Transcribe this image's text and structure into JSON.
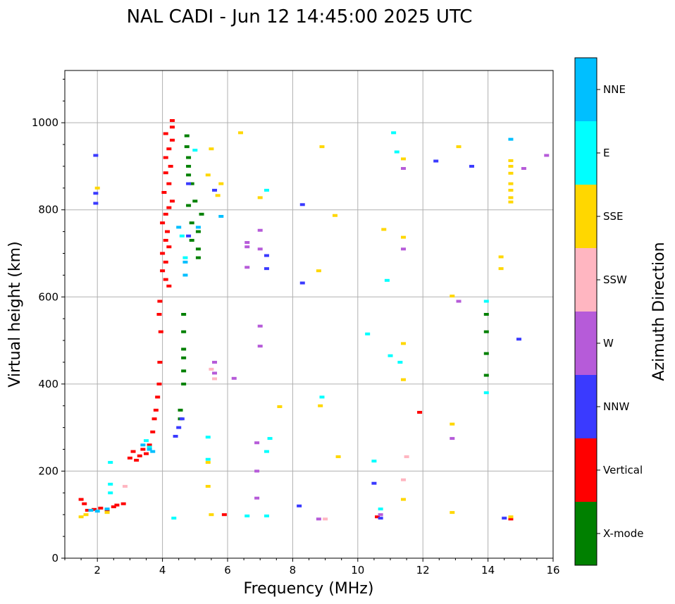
{
  "chart_data": {
    "type": "scatter",
    "title": "NAL CADI - Jun 12 14:45:00 2025 UTC",
    "xlabel": "Frequency (MHz)",
    "ylabel": "Virtual height (km)",
    "xlim": [
      1,
      16
    ],
    "ylim": [
      0,
      1120
    ],
    "xticks": [
      2,
      4,
      6,
      8,
      10,
      12,
      14,
      16
    ],
    "yticks": [
      0,
      200,
      400,
      600,
      800,
      1000
    ],
    "grid": true,
    "colorbar": {
      "label": "Azimuth Direction",
      "categories": [
        "X-mode",
        "Vertical",
        "NNW",
        "W",
        "SSW",
        "SSE",
        "E",
        "NNE"
      ],
      "colors": {
        "X-mode": "#008000",
        "Vertical": "#ff0000",
        "NNW": "#3a3aff",
        "W": "#b65bd9",
        "SSW": "#ffb6c1",
        "SSE": "#ffd700",
        "E": "#00ffff",
        "NNE": "#00bfff"
      }
    },
    "series": [
      {
        "name": "Vertical",
        "points": [
          [
            1.5,
            135
          ],
          [
            1.6,
            125
          ],
          [
            1.7,
            110
          ],
          [
            1.9,
            112
          ],
          [
            2.1,
            115
          ],
          [
            2.3,
            110
          ],
          [
            2.5,
            118
          ],
          [
            2.6,
            122
          ],
          [
            2.8,
            125
          ],
          [
            3.0,
            230
          ],
          [
            3.1,
            245
          ],
          [
            3.2,
            225
          ],
          [
            3.3,
            235
          ],
          [
            3.4,
            250
          ],
          [
            3.5,
            240
          ],
          [
            3.6,
            260
          ],
          [
            3.7,
            290
          ],
          [
            3.75,
            320
          ],
          [
            3.8,
            340
          ],
          [
            3.85,
            370
          ],
          [
            3.9,
            400
          ],
          [
            3.92,
            450
          ],
          [
            3.95,
            520
          ],
          [
            3.9,
            560
          ],
          [
            3.92,
            590
          ],
          [
            4.2,
            625
          ],
          [
            4.1,
            640
          ],
          [
            4.0,
            660
          ],
          [
            4.1,
            680
          ],
          [
            4.0,
            700
          ],
          [
            4.2,
            715
          ],
          [
            4.1,
            730
          ],
          [
            4.15,
            750
          ],
          [
            4.0,
            770
          ],
          [
            4.1,
            790
          ],
          [
            4.2,
            805
          ],
          [
            4.3,
            820
          ],
          [
            4.05,
            840
          ],
          [
            4.2,
            860
          ],
          [
            4.1,
            885
          ],
          [
            4.25,
            900
          ],
          [
            4.1,
            920
          ],
          [
            4.2,
            940
          ],
          [
            4.3,
            960
          ],
          [
            4.1,
            975
          ],
          [
            4.3,
            990
          ],
          [
            4.3,
            1005
          ],
          [
            5.9,
            100
          ],
          [
            10.6,
            95
          ],
          [
            11.9,
            335
          ],
          [
            14.7,
            90
          ]
        ]
      },
      {
        "name": "X-mode",
        "points": [
          [
            4.55,
            320
          ],
          [
            4.55,
            340
          ],
          [
            4.65,
            400
          ],
          [
            4.65,
            430
          ],
          [
            4.65,
            460
          ],
          [
            4.65,
            480
          ],
          [
            4.65,
            520
          ],
          [
            4.65,
            560
          ],
          [
            5.1,
            690
          ],
          [
            5.1,
            710
          ],
          [
            4.9,
            730
          ],
          [
            5.1,
            750
          ],
          [
            4.9,
            770
          ],
          [
            5.2,
            790
          ],
          [
            4.8,
            810
          ],
          [
            5.0,
            820
          ],
          [
            4.9,
            860
          ],
          [
            4.8,
            880
          ],
          [
            4.8,
            900
          ],
          [
            4.8,
            920
          ],
          [
            4.75,
            945
          ],
          [
            4.75,
            970
          ],
          [
            13.95,
            420
          ],
          [
            13.95,
            470
          ],
          [
            13.95,
            520
          ],
          [
            13.95,
            560
          ]
        ]
      },
      {
        "name": "NNW",
        "points": [
          [
            4.4,
            280
          ],
          [
            4.5,
            300
          ],
          [
            4.6,
            320
          ],
          [
            4.8,
            740
          ],
          [
            4.8,
            860
          ],
          [
            5.6,
            845
          ],
          [
            7.2,
            665
          ],
          [
            7.2,
            695
          ],
          [
            8.2,
            120
          ],
          [
            8.3,
            812
          ],
          [
            8.3,
            632
          ],
          [
            10.5,
            172
          ],
          [
            10.7,
            92
          ],
          [
            12.4,
            912
          ],
          [
            13.5,
            900
          ],
          [
            14.5,
            92
          ],
          [
            14.95,
            503
          ],
          [
            1.95,
            925
          ],
          [
            1.95,
            815
          ],
          [
            1.95,
            838
          ]
        ]
      },
      {
        "name": "W",
        "points": [
          [
            5.6,
            425
          ],
          [
            5.6,
            450
          ],
          [
            6.6,
            725
          ],
          [
            6.6,
            715
          ],
          [
            6.6,
            668
          ],
          [
            7.0,
            753
          ],
          [
            7.0,
            710
          ],
          [
            7.0,
            533
          ],
          [
            7.0,
            487
          ],
          [
            6.9,
            265
          ],
          [
            6.9,
            200
          ],
          [
            6.9,
            138
          ],
          [
            8.8,
            90
          ],
          [
            11.4,
            710
          ],
          [
            11.4,
            895
          ],
          [
            13.1,
            590
          ],
          [
            12.9,
            275
          ],
          [
            15.1,
            895
          ],
          [
            15.8,
            925
          ],
          [
            6.2,
            413
          ],
          [
            10.7,
            100
          ]
        ]
      },
      {
        "name": "SSW",
        "points": [
          [
            2.85,
            165
          ],
          [
            5.5,
            434
          ],
          [
            11.5,
            233
          ],
          [
            11.4,
            180
          ],
          [
            9.0,
            90
          ],
          [
            5.6,
            412
          ]
        ]
      },
      {
        "name": "SSE",
        "points": [
          [
            1.5,
            95
          ],
          [
            1.65,
            100
          ],
          [
            2.3,
            105
          ],
          [
            2.0,
            850
          ],
          [
            5.4,
            880
          ],
          [
            5.5,
            940
          ],
          [
            5.8,
            860
          ],
          [
            5.7,
            833
          ],
          [
            6.4,
            977
          ],
          [
            7.0,
            828
          ],
          [
            8.9,
            945
          ],
          [
            9.3,
            787
          ],
          [
            8.8,
            660
          ],
          [
            8.85,
            350
          ],
          [
            7.6,
            348
          ],
          [
            9.4,
            233
          ],
          [
            10.8,
            755
          ],
          [
            11.4,
            737
          ],
          [
            11.4,
            917
          ],
          [
            11.4,
            493
          ],
          [
            11.4,
            410
          ],
          [
            11.4,
            135
          ],
          [
            12.9,
            602
          ],
          [
            12.9,
            308
          ],
          [
            12.9,
            105
          ],
          [
            13.1,
            945
          ],
          [
            14.4,
            692
          ],
          [
            14.4,
            665
          ],
          [
            14.7,
            913
          ],
          [
            14.7,
            900
          ],
          [
            14.7,
            884
          ],
          [
            14.7,
            860
          ],
          [
            14.7,
            845
          ],
          [
            14.7,
            828
          ],
          [
            14.7,
            818
          ],
          [
            14.7,
            95
          ],
          [
            5.4,
            220
          ],
          [
            5.4,
            165
          ],
          [
            5.5,
            100
          ]
        ]
      },
      {
        "name": "E",
        "points": [
          [
            2.4,
            220
          ],
          [
            2.4,
            170
          ],
          [
            2.4,
            150
          ],
          [
            3.5,
            270
          ],
          [
            3.6,
            255
          ],
          [
            4.35,
            92
          ],
          [
            4.6,
            740
          ],
          [
            4.7,
            690
          ],
          [
            5.0,
            937
          ],
          [
            5.4,
            278
          ],
          [
            5.4,
            227
          ],
          [
            6.6,
            97
          ],
          [
            7.2,
            845
          ],
          [
            7.3,
            275
          ],
          [
            7.2,
            245
          ],
          [
            7.2,
            97
          ],
          [
            8.9,
            370
          ],
          [
            10.3,
            515
          ],
          [
            10.5,
            223
          ],
          [
            10.7,
            113
          ],
          [
            10.9,
            638
          ],
          [
            11.1,
            977
          ],
          [
            11.0,
            465
          ],
          [
            11.3,
            450
          ],
          [
            11.2,
            933
          ],
          [
            13.95,
            380
          ],
          [
            13.95,
            590
          ]
        ]
      },
      {
        "name": "NNE",
        "points": [
          [
            1.8,
            110
          ],
          [
            2.0,
            108
          ],
          [
            2.3,
            113
          ],
          [
            3.4,
            260
          ],
          [
            3.6,
            250
          ],
          [
            3.7,
            245
          ],
          [
            4.5,
            760
          ],
          [
            4.7,
            680
          ],
          [
            4.7,
            650
          ],
          [
            5.1,
            760
          ],
          [
            5.8,
            785
          ],
          [
            14.7,
            962
          ]
        ]
      }
    ]
  }
}
